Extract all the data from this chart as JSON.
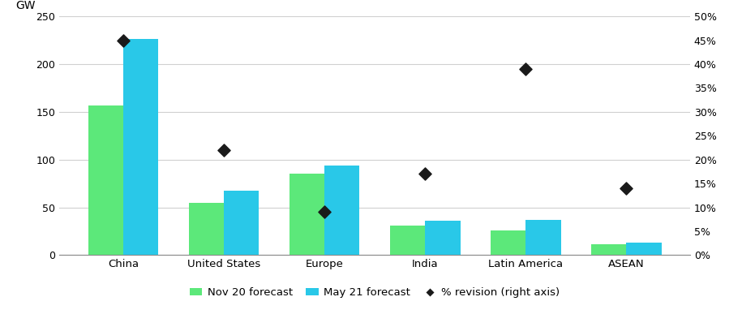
{
  "categories": [
    "China",
    "United States",
    "Europe",
    "India",
    "Latin America",
    "ASEAN"
  ],
  "nov20_forecast": [
    157,
    55,
    85,
    31,
    26,
    11
  ],
  "may21_forecast": [
    226,
    67,
    94,
    36,
    37,
    13
  ],
  "pct_revision": [
    45,
    22,
    9,
    17,
    39,
    14
  ],
  "bar_color_nov20": "#5ce87a",
  "bar_color_may21": "#29c8e8",
  "diamond_color": "#1a1a1a",
  "ylabel_left": "GW",
  "ylim_left": [
    0,
    250
  ],
  "ylim_right": [
    0,
    50
  ],
  "yticks_left": [
    0,
    50,
    100,
    150,
    200,
    250
  ],
  "yticks_right": [
    0,
    5,
    10,
    15,
    20,
    25,
    30,
    35,
    40,
    45,
    50
  ],
  "ytick_labels_right": [
    "0%",
    "5%",
    "10%",
    "15%",
    "20%",
    "25%",
    "30%",
    "35%",
    "40%",
    "45%",
    "50%"
  ],
  "legend_labels": [
    "Nov 20 forecast",
    "May 21 forecast",
    "% revision (right axis)"
  ],
  "background_color": "#ffffff",
  "grid_color": "#d0d0d0",
  "bar_width": 0.35
}
